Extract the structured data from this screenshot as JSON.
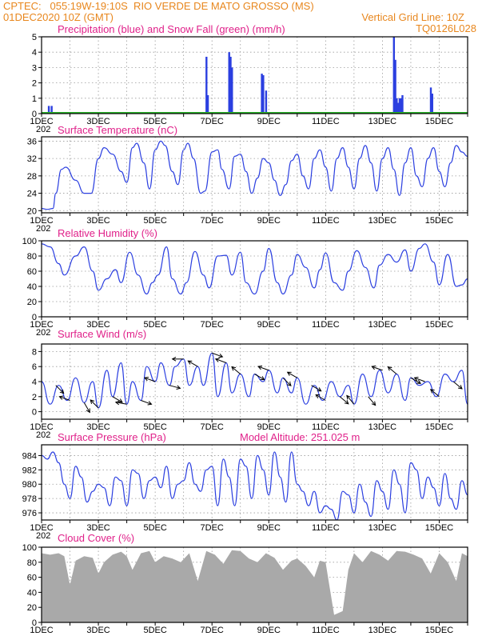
{
  "header": {
    "left_line1": "CPTEC:   055:19W-19:10S  RIO VERDE DE MATO GROSSO (MS)",
    "left_line2": "01DEC2020 10Z (GMT)",
    "right_line2": "Vertical Grid Line: 10Z",
    "right_line3": "TQ0126L028"
  },
  "colors": {
    "header": "#e8871e",
    "panel_title": "#e0218a",
    "line": "#2b3fe0",
    "precip": "#2b3fe0",
    "snow": "#2bb52b",
    "cloud": "#a9a9a9",
    "grid": "#9a9a9a"
  },
  "x_axis": {
    "labels": [
      "1DEC",
      "3DEC",
      "5DEC",
      "7DEC",
      "9DEC",
      "11DEC",
      "13DEC",
      "15DEC"
    ],
    "label_days": [
      1,
      3,
      5,
      7,
      9,
      11,
      13,
      15
    ],
    "first_tick_extra": "202",
    "range_days": [
      1,
      16
    ]
  },
  "extra_text": {
    "model_altitude": "Model Altitude: 251.025 m"
  },
  "chart_data": [
    {
      "id": "precip",
      "type": "bar",
      "title": "Precipitation (blue) and Snow Fall (green) (mm/h)",
      "ylim": [
        0,
        5
      ],
      "yticks": [
        0,
        1,
        2,
        3,
        4,
        5
      ],
      "x_unit": "day",
      "x": [
        1.25,
        1.35,
        6.8,
        6.85,
        7.6,
        7.65,
        7.7,
        8.75,
        8.8,
        8.9,
        13.4,
        13.45,
        13.5,
        13.55,
        13.6,
        13.65,
        13.7,
        14.7,
        14.75
      ],
      "values": [
        0.5,
        0.5,
        3.7,
        1.2,
        4.0,
        3.7,
        3.0,
        2.6,
        2.5,
        1.5,
        5.0,
        3.5,
        1.0,
        0.7,
        1.0,
        1.0,
        1.2,
        1.7,
        1.3
      ],
      "snow": "0 throughout"
    },
    {
      "id": "temp",
      "type": "line",
      "title": "Surface Temperature (nC)",
      "ylim": [
        19.5,
        37
      ],
      "yticks": [
        20,
        24,
        28,
        32,
        36
      ],
      "x": [
        1.0,
        1.2,
        1.4,
        1.5,
        1.7,
        1.85,
        2.2,
        2.5,
        2.75,
        3.0,
        3.2,
        3.5,
        3.8,
        4.0,
        4.2,
        4.35,
        4.6,
        4.8,
        5.0,
        5.2,
        5.35,
        5.6,
        5.8,
        6.0,
        6.15,
        6.35,
        6.6,
        6.75,
        7.0,
        7.2,
        7.35,
        7.6,
        7.8,
        8.0,
        8.2,
        8.4,
        8.6,
        8.8,
        9.0,
        9.2,
        9.4,
        9.6,
        9.8,
        10.0,
        10.2,
        10.4,
        10.6,
        10.8,
        11.0,
        11.2,
        11.4,
        11.6,
        11.8,
        12.0,
        12.2,
        12.4,
        12.6,
        12.8,
        13.0,
        13.2,
        13.4,
        13.6,
        13.8,
        14.0,
        14.2,
        14.4,
        14.6,
        14.8,
        15.0,
        15.2,
        15.4,
        15.6,
        15.8,
        16.0
      ],
      "values": [
        20.5,
        20.3,
        20.5,
        24.0,
        29.5,
        30.0,
        27.0,
        24.0,
        24.0,
        32.0,
        34.5,
        33.0,
        29.0,
        26.5,
        34.5,
        35.5,
        31.0,
        25.0,
        34.0,
        36.0,
        35.0,
        29.0,
        26.0,
        34.0,
        35.5,
        32.0,
        24.0,
        24.5,
        33.5,
        34.0,
        29.5,
        25.0,
        32.5,
        33.0,
        29.0,
        24.0,
        27.5,
        32.0,
        31.0,
        27.0,
        23.5,
        26.0,
        31.5,
        33.0,
        28.0,
        25.0,
        32.0,
        34.0,
        30.0,
        24.5,
        32.0,
        34.5,
        30.0,
        25.0,
        32.0,
        35.0,
        31.0,
        24.5,
        32.0,
        34.5,
        29.5,
        23.5,
        31.0,
        34.5,
        28.0,
        25.5,
        32.0,
        34.5,
        29.0,
        25.5,
        31.0,
        35.0,
        33.5,
        32.5
      ]
    },
    {
      "id": "rh",
      "type": "line",
      "title": "Relative Humidity (%)",
      "ylim": [
        0,
        100
      ],
      "yticks": [
        0,
        20,
        40,
        60,
        80,
        100
      ],
      "x": [
        1.0,
        1.3,
        1.6,
        1.8,
        2.2,
        2.5,
        2.8,
        3.0,
        3.3,
        3.6,
        3.8,
        4.1,
        4.4,
        4.7,
        4.9,
        5.1,
        5.4,
        5.6,
        5.9,
        6.1,
        6.4,
        6.7,
        6.9,
        7.2,
        7.5,
        7.7,
        8.0,
        8.2,
        8.5,
        8.8,
        9.0,
        9.3,
        9.5,
        9.8,
        10.0,
        10.3,
        10.6,
        10.8,
        11.0,
        11.3,
        11.6,
        11.8,
        12.1,
        12.4,
        12.7,
        12.9,
        13.2,
        13.5,
        13.8,
        14.0,
        14.3,
        14.5,
        14.8,
        15.0,
        15.3,
        15.6,
        15.8,
        16.0
      ],
      "values": [
        96,
        92,
        70,
        55,
        80,
        92,
        60,
        35,
        50,
        62,
        45,
        85,
        55,
        30,
        45,
        55,
        92,
        50,
        30,
        45,
        86,
        55,
        38,
        80,
        81,
        55,
        85,
        45,
        30,
        60,
        90,
        45,
        30,
        55,
        82,
        65,
        38,
        62,
        84,
        45,
        35,
        60,
        87,
        65,
        38,
        68,
        82,
        72,
        88,
        60,
        90,
        96,
        72,
        42,
        82,
        40,
        42,
        50
      ]
    },
    {
      "id": "wind",
      "type": "line",
      "title": "Surface Wind (m/s)",
      "ylim": [
        -1,
        9
      ],
      "yticks": [
        0,
        2,
        4,
        6,
        8
      ],
      "x": [
        1.0,
        1.3,
        1.6,
        1.9,
        2.2,
        2.5,
        2.8,
        3.0,
        3.3,
        3.5,
        3.8,
        4.0,
        4.2,
        4.5,
        4.7,
        5.0,
        5.2,
        5.5,
        5.7,
        6.0,
        6.2,
        6.5,
        6.7,
        7.0,
        7.2,
        7.5,
        7.7,
        8.0,
        8.3,
        8.5,
        8.8,
        9.0,
        9.3,
        9.5,
        9.8,
        10.0,
        10.3,
        10.6,
        10.9,
        11.2,
        11.5,
        11.8,
        12.0,
        12.3,
        12.6,
        12.9,
        13.2,
        13.5,
        13.8,
        14.0,
        14.3,
        14.6,
        14.9,
        15.2,
        15.5,
        15.8,
        16.0
      ],
      "values": [
        4.0,
        1.0,
        3.5,
        1.5,
        4.5,
        1.2,
        4.0,
        0.5,
        5.5,
        2.0,
        6.5,
        1.0,
        4.0,
        1.5,
        6.0,
        4.0,
        6.5,
        3.5,
        6.0,
        7.0,
        3.5,
        6.0,
        3.5,
        7.8,
        2.0,
        6.5,
        2.5,
        5.0,
        2.0,
        5.0,
        4.0,
        5.5,
        2.5,
        4.5,
        2.5,
        4.5,
        1.0,
        3.5,
        1.5,
        4.0,
        2.0,
        3.5,
        1.0,
        5.0,
        2.0,
        5.5,
        2.5,
        5.0,
        1.5,
        4.5,
        3.5,
        4.0,
        2.0,
        5.0,
        4.0,
        5.5,
        1.0
      ],
      "arrows_day": [
        1.5,
        2.0,
        2.5,
        3.0,
        3.5,
        4.0,
        4.5,
        5.0,
        5.5,
        6.0,
        6.5,
        7.0,
        7.5,
        8.0,
        8.5,
        9.0,
        9.5,
        10.0,
        10.5,
        11.0,
        11.5,
        12.0,
        12.5,
        13.0,
        13.5,
        14.0,
        14.5,
        15.0,
        15.5
      ],
      "arrows_dir_deg": [
        45,
        200,
        60,
        225,
        30,
        190,
        20,
        200,
        15,
        180,
        210,
        20,
        200,
        220,
        30,
        200,
        45,
        210,
        30,
        210,
        40,
        230,
        50,
        200,
        220,
        30,
        200,
        220,
        40
      ]
    },
    {
      "id": "pres",
      "type": "line",
      "title": "Surface Pressure (hPa)",
      "ylim": [
        975,
        985.5
      ],
      "yticks": [
        976,
        978,
        980,
        982,
        984
      ],
      "x": [
        1.0,
        1.2,
        1.4,
        1.6,
        1.8,
        2.0,
        2.2,
        2.4,
        2.6,
        2.8,
        3.0,
        3.2,
        3.4,
        3.6,
        3.8,
        4.0,
        4.2,
        4.4,
        4.6,
        4.8,
        5.0,
        5.2,
        5.4,
        5.6,
        5.8,
        6.0,
        6.2,
        6.4,
        6.6,
        6.8,
        7.0,
        7.2,
        7.4,
        7.6,
        7.8,
        8.0,
        8.2,
        8.4,
        8.6,
        8.8,
        9.0,
        9.2,
        9.4,
        9.6,
        9.8,
        10.0,
        10.2,
        10.4,
        10.6,
        10.8,
        11.0,
        11.2,
        11.4,
        11.6,
        11.8,
        12.0,
        12.2,
        12.4,
        12.6,
        12.8,
        13.0,
        13.2,
        13.4,
        13.6,
        13.8,
        14.0,
        14.2,
        14.4,
        14.6,
        14.8,
        15.0,
        15.2,
        15.4,
        15.6,
        15.8,
        16.0
      ],
      "values": [
        984.0,
        983.5,
        984.5,
        983.0,
        980.0,
        978.0,
        982.5,
        981.0,
        977.5,
        979.0,
        980.0,
        979.5,
        977.0,
        981.0,
        980.5,
        977.0,
        982.0,
        981.5,
        978.0,
        980.5,
        981.0,
        979.5,
        982.5,
        978.0,
        980.0,
        980.5,
        983.0,
        980.0,
        979.0,
        982.0,
        982.5,
        977.0,
        983.5,
        981.0,
        977.0,
        983.5,
        982.5,
        978.0,
        984.0,
        982.0,
        978.5,
        984.5,
        981.0,
        977.5,
        984.5,
        980.0,
        979.0,
        977.0,
        979.0,
        976.0,
        977.0,
        976.5,
        975.0,
        979.0,
        978.5,
        976.0,
        980.0,
        977.5,
        975.5,
        980.5,
        979.0,
        976.5,
        982.0,
        980.0,
        976.0,
        983.0,
        982.0,
        978.0,
        981.0,
        979.5,
        977.0,
        981.5,
        978.0,
        976.5,
        980.5,
        978.5
      ]
    },
    {
      "id": "cloud",
      "type": "area",
      "title": "Cloud Cover (%)",
      "ylim": [
        0,
        100
      ],
      "yticks": [
        0,
        20,
        40,
        60,
        80,
        100
      ],
      "x": [
        1.0,
        1.3,
        1.6,
        1.8,
        2.0,
        2.2,
        2.5,
        2.8,
        3.0,
        3.2,
        3.5,
        3.8,
        4.0,
        4.2,
        4.5,
        4.8,
        5.0,
        5.3,
        5.6,
        5.9,
        6.2,
        6.5,
        6.8,
        7.1,
        7.4,
        7.7,
        8.0,
        8.3,
        8.6,
        8.9,
        9.2,
        9.5,
        9.8,
        10.0,
        10.3,
        10.6,
        10.8,
        11.0,
        11.3,
        11.6,
        11.8,
        12.0,
        12.3,
        12.6,
        12.9,
        13.2,
        13.5,
        13.8,
        14.1,
        14.4,
        14.7,
        15.0,
        15.3,
        15.6,
        15.8,
        16.0
      ],
      "values": [
        92,
        90,
        92,
        88,
        50,
        82,
        88,
        86,
        65,
        80,
        90,
        94,
        88,
        70,
        92,
        95,
        80,
        88,
        85,
        80,
        92,
        55,
        95,
        90,
        78,
        96,
        95,
        85,
        80,
        92,
        86,
        70,
        82,
        85,
        75,
        60,
        82,
        80,
        10,
        15,
        70,
        92,
        80,
        95,
        90,
        82,
        95,
        94,
        90,
        85,
        65,
        92,
        80,
        55,
        92,
        88
      ]
    }
  ]
}
